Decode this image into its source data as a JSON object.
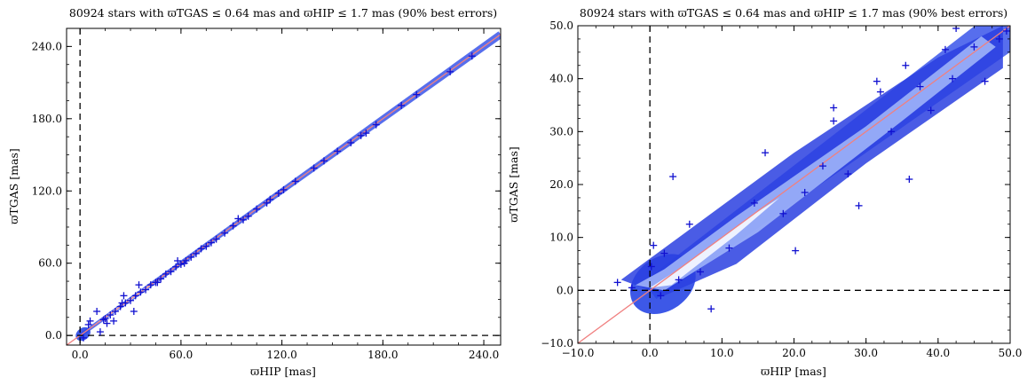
{
  "chart_data": [
    {
      "type": "scatter",
      "title": "80924 stars with ϖTGAS ≤ 0.64 mas and ϖHIP ≤ 1.7 mas (90% best errors)",
      "xlabel": "ϖHIP [mas]",
      "ylabel": "ϖTGAS [mas]",
      "xlim": [
        -8,
        250
      ],
      "ylim": [
        -8,
        255
      ],
      "xticks": [
        "0.0",
        "60.0",
        "120.0",
        "180.0",
        "240.0"
      ],
      "yticks": [
        "0.0",
        "60.0",
        "120.0",
        "180.0",
        "240.0"
      ],
      "reference_line": "y = x",
      "zero_lines": "dashed x = 0 and y = 0",
      "colors": {
        "points": "#1010d0",
        "density": "#3050e8",
        "reference_line": "#f08080"
      },
      "outlier_points": [
        [
          233,
          232
        ],
        [
          220,
          219
        ],
        [
          200,
          200
        ],
        [
          191,
          191
        ],
        [
          176,
          175
        ],
        [
          170,
          168
        ],
        [
          167,
          166
        ],
        [
          161,
          160
        ],
        [
          153,
          153
        ],
        [
          145,
          145
        ],
        [
          139,
          139
        ],
        [
          128,
          128
        ],
        [
          121,
          121
        ],
        [
          118,
          118
        ],
        [
          113,
          113
        ],
        [
          111,
          110
        ],
        [
          105,
          105
        ],
        [
          100,
          99
        ],
        [
          97,
          96
        ],
        [
          91,
          91
        ],
        [
          86,
          85
        ],
        [
          81,
          80
        ],
        [
          78,
          77
        ],
        [
          75,
          74
        ],
        [
          72,
          72
        ],
        [
          69,
          68
        ],
        [
          66,
          65
        ],
        [
          63,
          62
        ],
        [
          60,
          59
        ],
        [
          57,
          57
        ],
        [
          54,
          53
        ],
        [
          51,
          51
        ],
        [
          48,
          47
        ],
        [
          45,
          44
        ],
        [
          42,
          42
        ],
        [
          39,
          38
        ],
        [
          36,
          36
        ],
        [
          33,
          33
        ],
        [
          30,
          29
        ],
        [
          27,
          27
        ],
        [
          24,
          24
        ],
        [
          21,
          20
        ],
        [
          18,
          17
        ],
        [
          15,
          14
        ],
        [
          10,
          20
        ],
        [
          14,
          13
        ],
        [
          6,
          12
        ],
        [
          5,
          9
        ],
        [
          12,
          3
        ],
        [
          16,
          10
        ],
        [
          20,
          12
        ],
        [
          26,
          33
        ],
        [
          32,
          20
        ],
        [
          2,
          -2
        ],
        [
          25,
          27
        ],
        [
          35,
          42
        ],
        [
          46,
          44
        ],
        [
          58,
          62
        ],
        [
          62,
          60
        ],
        [
          94,
          97
        ]
      ]
    },
    {
      "type": "scatter",
      "title": "80924 stars with ϖTGAS ≤ 0.64 mas and ϖHIP ≤ 1.7 mas (90% best errors)",
      "xlabel": "ϖHIP [mas]",
      "ylabel": "ϖTGAS [mas]",
      "xlim": [
        -10,
        50
      ],
      "ylim": [
        -10,
        50
      ],
      "xticks": [
        "−10.0",
        "0.0",
        "10.0",
        "20.0",
        "30.0",
        "40.0",
        "50.0"
      ],
      "yticks": [
        "−10.0",
        "0.0",
        "10.0",
        "20.0",
        "30.0",
        "40.0",
        "50.0"
      ],
      "reference_line": "y = x",
      "zero_lines": "dashed x = 0 and y = 0",
      "colors": {
        "points": "#1010d0",
        "density": "#3050e8",
        "reference_line": "#f08080"
      },
      "outlier_points": [
        [
          -4.5,
          1.5
        ],
        [
          -2.5,
          0.5
        ],
        [
          0.2,
          4.5
        ],
        [
          0.5,
          8.5
        ],
        [
          3.2,
          21.5
        ],
        [
          5.5,
          12.5
        ],
        [
          8.5,
          -3.5
        ],
        [
          16.0,
          26.0
        ],
        [
          21.5,
          18.5
        ],
        [
          24.0,
          23.5
        ],
        [
          25.5,
          34.5
        ],
        [
          25.5,
          32.0
        ],
        [
          20.2,
          7.5
        ],
        [
          27.5,
          22.0
        ],
        [
          31.5,
          39.5
        ],
        [
          32.0,
          37.5
        ],
        [
          35.5,
          42.5
        ],
        [
          36.0,
          21.0
        ],
        [
          37.5,
          38.5
        ],
        [
          41.0,
          45.5
        ],
        [
          42.0,
          40.0
        ],
        [
          45.0,
          46.0
        ],
        [
          46.5,
          39.5
        ],
        [
          48.5,
          47.5
        ],
        [
          49.5,
          49.0
        ],
        [
          42.5,
          49.5
        ],
        [
          29.0,
          16.0
        ],
        [
          33.5,
          30.0
        ],
        [
          18.5,
          14.5
        ],
        [
          14.5,
          16.5
        ],
        [
          11.0,
          8.0
        ],
        [
          7.0,
          3.5
        ],
        [
          1.5,
          -1.0
        ],
        [
          4.0,
          2.0
        ],
        [
          2.0,
          7.0
        ],
        [
          39.0,
          34.0
        ]
      ]
    }
  ]
}
